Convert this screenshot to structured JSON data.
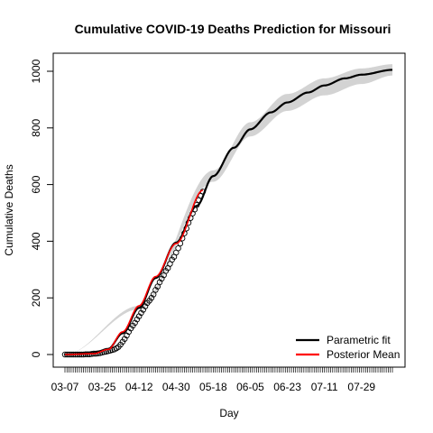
{
  "chart_data": {
    "type": "line",
    "title": "Cumulative COVID-19 Deaths Prediction for Missouri",
    "xlabel": "Day",
    "ylabel": "Cumulative Deaths",
    "x_start_date": "2020-03-07",
    "x_end_date": "2020-08-13",
    "x_tick_labels": [
      "03-07",
      "03-25",
      "04-12",
      "04-30",
      "05-18",
      "06-05",
      "06-23",
      "07-11",
      "07-29"
    ],
    "y_ticks": [
      0,
      200,
      400,
      600,
      800,
      1000
    ],
    "ylim": [
      -30,
      1050
    ],
    "observed_end_date": "2020-05-13",
    "legend": {
      "position": "bottom-right",
      "entries": [
        {
          "label": "Parametric fit",
          "color": "#000000"
        },
        {
          "label": "Posterior Mean",
          "color": "#ff0000"
        }
      ]
    },
    "series": [
      {
        "name": "Parametric fit",
        "color": "#000000",
        "x": [
          "2020-03-07",
          "2020-03-21",
          "2020-03-28",
          "2020-04-04",
          "2020-04-12",
          "2020-04-20",
          "2020-04-30",
          "2020-05-10",
          "2020-05-18",
          "2020-05-28",
          "2020-06-05",
          "2020-06-15",
          "2020-06-23",
          "2020-07-03",
          "2020-07-11",
          "2020-07-21",
          "2020-07-29",
          "2020-08-13"
        ],
        "y": [
          0,
          5,
          20,
          75,
          165,
          270,
          395,
          525,
          630,
          730,
          795,
          855,
          890,
          925,
          950,
          975,
          988,
          1005
        ]
      },
      {
        "name": "Posterior Mean",
        "color": "#ff0000",
        "x": [
          "2020-03-07",
          "2020-03-21",
          "2020-03-28",
          "2020-04-04",
          "2020-04-12",
          "2020-04-20",
          "2020-04-30",
          "2020-05-13"
        ],
        "y": [
          0,
          3,
          18,
          80,
          172,
          275,
          392,
          580
        ]
      }
    ],
    "ci_band": {
      "x": [
        "2020-03-07",
        "2020-04-12",
        "2020-05-18",
        "2020-06-05",
        "2020-06-23",
        "2020-07-11",
        "2020-07-29",
        "2020-08-13"
      ],
      "lower": [
        0,
        160,
        610,
        770,
        860,
        915,
        955,
        985
      ],
      "upper": [
        0,
        172,
        650,
        820,
        920,
        975,
        1010,
        1025
      ]
    },
    "points": {
      "x": [
        "2020-03-07",
        "2020-03-08",
        "2020-03-09",
        "2020-03-10",
        "2020-03-11",
        "2020-03-12",
        "2020-03-13",
        "2020-03-14",
        "2020-03-15",
        "2020-03-16",
        "2020-03-17",
        "2020-03-18",
        "2020-03-19",
        "2020-03-20",
        "2020-03-21",
        "2020-03-22",
        "2020-03-23",
        "2020-03-24",
        "2020-03-25",
        "2020-03-26",
        "2020-03-27",
        "2020-03-28",
        "2020-03-29",
        "2020-03-30",
        "2020-03-31",
        "2020-04-01",
        "2020-04-02",
        "2020-04-03",
        "2020-04-04",
        "2020-04-05",
        "2020-04-06",
        "2020-04-07",
        "2020-04-08",
        "2020-04-09",
        "2020-04-10",
        "2020-04-11",
        "2020-04-12",
        "2020-04-13",
        "2020-04-14",
        "2020-04-15",
        "2020-04-16",
        "2020-04-17",
        "2020-04-18",
        "2020-04-19",
        "2020-04-20",
        "2020-04-21",
        "2020-04-22",
        "2020-04-23",
        "2020-04-24",
        "2020-04-25",
        "2020-04-26",
        "2020-04-27",
        "2020-04-28",
        "2020-04-29",
        "2020-04-30",
        "2020-05-01",
        "2020-05-02",
        "2020-05-03",
        "2020-05-04",
        "2020-05-05",
        "2020-05-06",
        "2020-05-07",
        "2020-05-08",
        "2020-05-09",
        "2020-05-10",
        "2020-05-11",
        "2020-05-12",
        "2020-05-13"
      ],
      "y": [
        0,
        0,
        0,
        0,
        0,
        0,
        0,
        0,
        0,
        0,
        1,
        1,
        1,
        2,
        3,
        3,
        4,
        5,
        7,
        9,
        10,
        12,
        14,
        16,
        18,
        22,
        27,
        35,
        45,
        55,
        67,
        80,
        92,
        102,
        112,
        124,
        135,
        147,
        158,
        170,
        182,
        190,
        200,
        212,
        228,
        240,
        255,
        268,
        280,
        295,
        305,
        320,
        335,
        345,
        360,
        375,
        392,
        410,
        428,
        445,
        465,
        482,
        498,
        512,
        528,
        545,
        560,
        575
      ]
    }
  }
}
